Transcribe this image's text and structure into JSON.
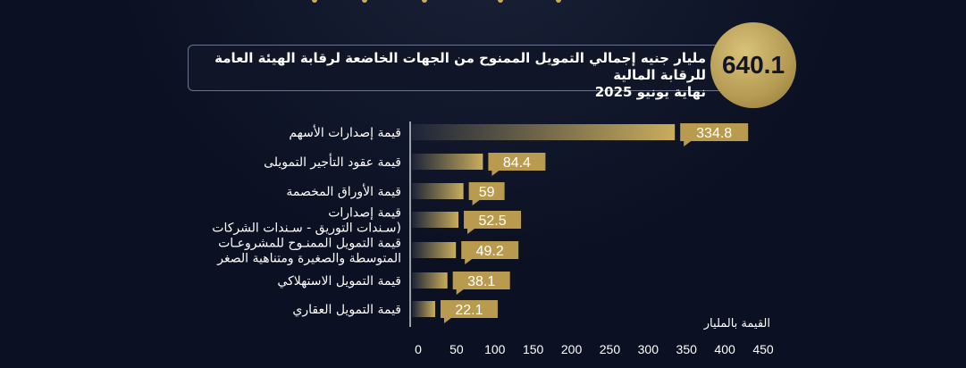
{
  "header": {
    "total_value": "640.1",
    "headline_line1": "مليار جنيه إجمالي التمويل الممنوح من الجهات الخاضعة لرقابة الهيئة العامة للرقابة المالية",
    "headline_line2": "نهاية يونيو 2025"
  },
  "chart_data": {
    "type": "bar",
    "orientation": "horizontal",
    "categories": [
      [
        "قيمة إصدارات الأسهم"
      ],
      [
        "قيمة عقود التأجير التمويلى"
      ],
      [
        "قيمة الأوراق المخصمة"
      ],
      [
        "قيمة إصدارات",
        "(سـندات التوريق - سـندات الشركات"
      ],
      [
        "قيمة التمويل الممنـوح للمشروعـات",
        "المتوسطة والصغيرة ومتناهية الصغر"
      ],
      [
        "قيمة التمويل الاستهلاكي"
      ],
      [
        "قيمة التمويل العقاري"
      ]
    ],
    "values": [
      334.8,
      84.4,
      59,
      52.5,
      49.2,
      38.1,
      22.1
    ],
    "value_labels": [
      "334.8",
      "84.4",
      "59",
      "52.5",
      "49.2",
      "38.1",
      "22.1"
    ],
    "x_ticks": [
      "0",
      "50",
      "100",
      "150",
      "200",
      "250",
      "300",
      "350",
      "400",
      "450"
    ],
    "xlim": [
      0,
      450
    ],
    "xlabel": "القيمة بالمليار",
    "colors": {
      "bar_start": "#1c2438",
      "bar_end": "#c9ad5c",
      "label_bg": "#b89b4f",
      "label_text": "#ffffff",
      "category_text": "#ffffff",
      "axis": "#ffffff"
    }
  }
}
